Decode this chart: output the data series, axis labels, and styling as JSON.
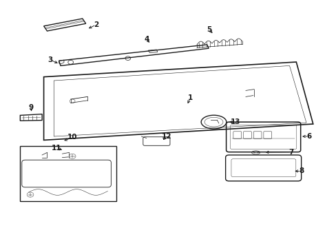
{
  "bg_color": "#ffffff",
  "line_color": "#1a1a1a",
  "parts_labels": {
    "1": [
      0.55,
      0.595,
      0.55,
      0.56
    ],
    "2": [
      0.275,
      0.895,
      0.255,
      0.875
    ],
    "3": [
      0.155,
      0.75,
      0.175,
      0.73
    ],
    "4": [
      0.43,
      0.835,
      0.44,
      0.815
    ],
    "5": [
      0.615,
      0.875,
      0.62,
      0.855
    ],
    "6": [
      0.915,
      0.37,
      0.895,
      0.37
    ],
    "7": [
      0.865,
      0.38,
      0.83,
      0.38
    ],
    "8": [
      0.895,
      0.3,
      0.86,
      0.295
    ],
    "9": [
      0.095,
      0.565,
      0.105,
      0.545
    ],
    "10": [
      0.215,
      0.44,
      0.215,
      0.425
    ],
    "11": [
      0.175,
      0.4,
      0.2,
      0.395
    ],
    "12": [
      0.495,
      0.445,
      0.5,
      0.425
    ],
    "13": [
      0.695,
      0.505,
      0.67,
      0.505
    ]
  }
}
